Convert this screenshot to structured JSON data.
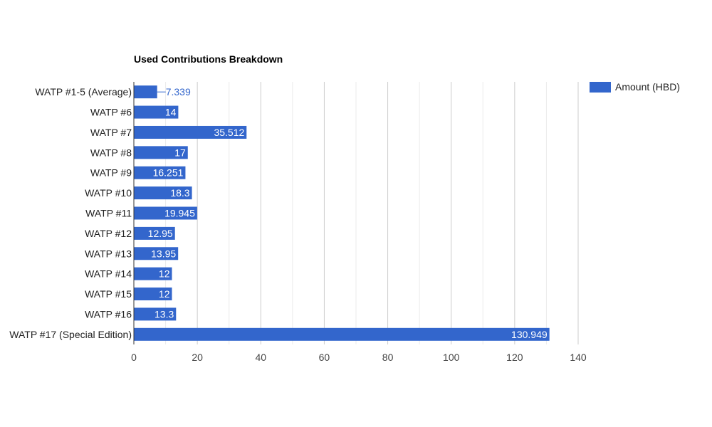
{
  "chart_data": {
    "type": "bar",
    "orientation": "horizontal",
    "title": "Used Contributions Breakdown",
    "xlabel": "",
    "ylabel": "",
    "categories": [
      "WATP #1-5 (Average)",
      "WATP #6",
      "WATP #7",
      "WATP #8",
      "WATP #9",
      "WATP #10",
      "WATP #11",
      "WATP #12",
      "WATP #13",
      "WATP #14",
      "WATP #15",
      "WATP #16",
      "WATP #17 (Special Edition)"
    ],
    "series": [
      {
        "name": "Amount (HBD)",
        "color": "#3366cc",
        "values": [
          7.339,
          14,
          35.512,
          17,
          16.251,
          18.3,
          19.945,
          12.95,
          13.95,
          12,
          12,
          13.3,
          130.949
        ]
      }
    ],
    "xlim": [
      0,
      140
    ],
    "x_ticks": [
      0,
      20,
      40,
      60,
      80,
      100,
      120,
      140
    ],
    "grid": true,
    "legend_position": "top-right"
  }
}
